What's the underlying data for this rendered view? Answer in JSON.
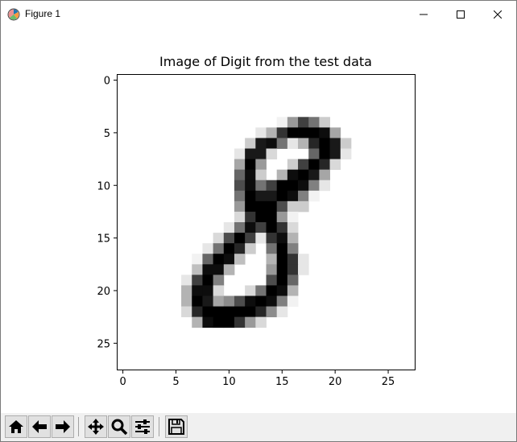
{
  "window": {
    "title": "Figure 1"
  },
  "titlebar_buttons": [
    {
      "name": "minimize-button",
      "icon": "minimize-icon"
    },
    {
      "name": "maximize-button",
      "icon": "maximize-icon"
    },
    {
      "name": "close-button",
      "icon": "close-icon"
    }
  ],
  "toolbar": {
    "tools": [
      {
        "name": "home-button",
        "icon": "home-icon"
      },
      {
        "name": "back-button",
        "icon": "arrow-left-icon"
      },
      {
        "name": "forward-button",
        "icon": "arrow-right-icon"
      },
      {
        "name": "pan-button",
        "icon": "move-icon"
      },
      {
        "name": "zoom-button",
        "icon": "magnifier-icon"
      },
      {
        "name": "configure-subplots-button",
        "icon": "sliders-icon"
      },
      {
        "name": "save-button",
        "icon": "floppy-disk-icon"
      }
    ]
  },
  "chart_data": {
    "type": "heatmap",
    "title": "Image of Digit from the test data",
    "xlabel": "",
    "ylabel": "",
    "colormap": "binary",
    "grid": false,
    "rows": 28,
    "cols": 28,
    "xlim": [
      -0.5,
      27.5
    ],
    "ylim": [
      27.5,
      -0.5
    ],
    "xticks": [
      0,
      5,
      10,
      15,
      20,
      25
    ],
    "yticks": [
      0,
      5,
      10,
      15,
      20,
      25
    ],
    "pixels": [
      [
        4,
        15,
        0.05
      ],
      [
        4,
        16,
        0.4
      ],
      [
        4,
        17,
        0.75
      ],
      [
        4,
        18,
        0.55
      ],
      [
        4,
        19,
        0.2
      ],
      [
        5,
        13,
        0.1
      ],
      [
        5,
        14,
        0.3
      ],
      [
        5,
        15,
        0.8
      ],
      [
        5,
        16,
        1.0
      ],
      [
        5,
        17,
        1.0
      ],
      [
        5,
        18,
        1.0
      ],
      [
        5,
        19,
        0.95
      ],
      [
        5,
        20,
        0.35
      ],
      [
        6,
        12,
        0.2
      ],
      [
        6,
        13,
        0.9
      ],
      [
        6,
        14,
        0.95
      ],
      [
        6,
        15,
        0.55
      ],
      [
        6,
        16,
        0.1
      ],
      [
        6,
        17,
        0.3
      ],
      [
        6,
        18,
        0.85
      ],
      [
        6,
        19,
        1.0
      ],
      [
        6,
        20,
        0.9
      ],
      [
        6,
        21,
        0.2
      ],
      [
        7,
        11,
        0.1
      ],
      [
        7,
        12,
        0.9
      ],
      [
        7,
        13,
        0.9
      ],
      [
        7,
        14,
        0.15
      ],
      [
        7,
        18,
        0.6
      ],
      [
        7,
        19,
        1.0
      ],
      [
        7,
        20,
        0.9
      ],
      [
        7,
        21,
        0.1
      ],
      [
        8,
        11,
        0.35
      ],
      [
        8,
        12,
        1.0
      ],
      [
        8,
        13,
        0.4
      ],
      [
        8,
        16,
        0.2
      ],
      [
        8,
        17,
        0.75
      ],
      [
        8,
        18,
        1.0
      ],
      [
        8,
        19,
        0.85
      ],
      [
        8,
        20,
        0.15
      ],
      [
        9,
        11,
        0.6
      ],
      [
        9,
        12,
        0.95
      ],
      [
        9,
        13,
        0.2
      ],
      [
        9,
        15,
        0.3
      ],
      [
        9,
        16,
        0.95
      ],
      [
        9,
        17,
        1.0
      ],
      [
        9,
        18,
        0.9
      ],
      [
        9,
        19,
        0.35
      ],
      [
        10,
        11,
        0.7
      ],
      [
        10,
        12,
        0.95
      ],
      [
        10,
        13,
        0.55
      ],
      [
        10,
        14,
        0.75
      ],
      [
        10,
        15,
        1.0
      ],
      [
        10,
        16,
        1.0
      ],
      [
        10,
        17,
        0.95
      ],
      [
        10,
        18,
        0.5
      ],
      [
        10,
        19,
        0.1
      ],
      [
        11,
        11,
        0.55
      ],
      [
        11,
        12,
        1.0
      ],
      [
        11,
        13,
        0.9
      ],
      [
        11,
        14,
        0.9
      ],
      [
        11,
        15,
        1.0
      ],
      [
        11,
        16,
        0.95
      ],
      [
        11,
        17,
        0.5
      ],
      [
        11,
        18,
        0.05
      ],
      [
        12,
        11,
        0.4
      ],
      [
        12,
        12,
        1.0
      ],
      [
        12,
        13,
        1.0
      ],
      [
        12,
        14,
        1.0
      ],
      [
        12,
        15,
        0.7
      ],
      [
        12,
        16,
        0.2
      ],
      [
        12,
        17,
        0.2
      ],
      [
        13,
        11,
        0.15
      ],
      [
        13,
        12,
        0.8
      ],
      [
        13,
        13,
        1.0
      ],
      [
        13,
        14,
        1.0
      ],
      [
        13,
        15,
        0.4
      ],
      [
        13,
        16,
        0.05
      ],
      [
        14,
        10,
        0.1
      ],
      [
        14,
        11,
        0.55
      ],
      [
        14,
        12,
        0.95
      ],
      [
        14,
        13,
        0.75
      ],
      [
        14,
        14,
        1.0
      ],
      [
        14,
        15,
        0.8
      ],
      [
        14,
        16,
        0.15
      ],
      [
        15,
        9,
        0.15
      ],
      [
        15,
        10,
        0.7
      ],
      [
        15,
        11,
        1.0
      ],
      [
        15,
        12,
        0.75
      ],
      [
        15,
        13,
        0.1
      ],
      [
        15,
        14,
        0.8
      ],
      [
        15,
        15,
        0.95
      ],
      [
        15,
        16,
        0.3
      ],
      [
        16,
        8,
        0.1
      ],
      [
        16,
        9,
        0.55
      ],
      [
        16,
        10,
        1.0
      ],
      [
        16,
        11,
        0.85
      ],
      [
        16,
        12,
        0.2
      ],
      [
        16,
        14,
        0.55
      ],
      [
        16,
        15,
        1.0
      ],
      [
        16,
        16,
        0.5
      ],
      [
        17,
        7,
        0.05
      ],
      [
        17,
        8,
        0.6
      ],
      [
        17,
        9,
        1.0
      ],
      [
        17,
        10,
        0.95
      ],
      [
        17,
        11,
        0.25
      ],
      [
        17,
        14,
        0.3
      ],
      [
        17,
        15,
        1.0
      ],
      [
        17,
        16,
        0.8
      ],
      [
        17,
        17,
        0.1
      ],
      [
        18,
        7,
        0.25
      ],
      [
        18,
        8,
        0.95
      ],
      [
        18,
        9,
        0.95
      ],
      [
        18,
        10,
        0.3
      ],
      [
        18,
        14,
        0.4
      ],
      [
        18,
        15,
        1.0
      ],
      [
        18,
        16,
        0.8
      ],
      [
        18,
        17,
        0.1
      ],
      [
        19,
        6,
        0.1
      ],
      [
        19,
        7,
        0.75
      ],
      [
        19,
        8,
        1.0
      ],
      [
        19,
        9,
        0.5
      ],
      [
        19,
        14,
        0.7
      ],
      [
        19,
        15,
        1.0
      ],
      [
        19,
        16,
        0.6
      ],
      [
        20,
        6,
        0.3
      ],
      [
        20,
        7,
        0.95
      ],
      [
        20,
        8,
        0.95
      ],
      [
        20,
        9,
        0.15
      ],
      [
        20,
        12,
        0.15
      ],
      [
        20,
        13,
        0.55
      ],
      [
        20,
        14,
        1.0
      ],
      [
        20,
        15,
        0.95
      ],
      [
        20,
        16,
        0.3
      ],
      [
        21,
        6,
        0.3
      ],
      [
        21,
        7,
        1.0
      ],
      [
        21,
        8,
        0.9
      ],
      [
        21,
        9,
        0.35
      ],
      [
        21,
        10,
        0.45
      ],
      [
        21,
        11,
        0.7
      ],
      [
        21,
        12,
        0.95
      ],
      [
        21,
        13,
        1.0
      ],
      [
        21,
        14,
        0.95
      ],
      [
        21,
        15,
        0.5
      ],
      [
        21,
        16,
        0.05
      ],
      [
        22,
        6,
        0.15
      ],
      [
        22,
        7,
        0.85
      ],
      [
        22,
        8,
        1.0
      ],
      [
        22,
        9,
        1.0
      ],
      [
        22,
        10,
        1.0
      ],
      [
        22,
        11,
        1.0
      ],
      [
        22,
        12,
        1.0
      ],
      [
        22,
        13,
        0.85
      ],
      [
        22,
        14,
        0.45
      ],
      [
        22,
        15,
        0.1
      ],
      [
        23,
        7,
        0.3
      ],
      [
        23,
        8,
        0.95
      ],
      [
        23,
        9,
        1.0
      ],
      [
        23,
        10,
        1.0
      ],
      [
        23,
        11,
        0.8
      ],
      [
        23,
        12,
        0.4
      ],
      [
        23,
        13,
        0.15
      ]
    ]
  }
}
